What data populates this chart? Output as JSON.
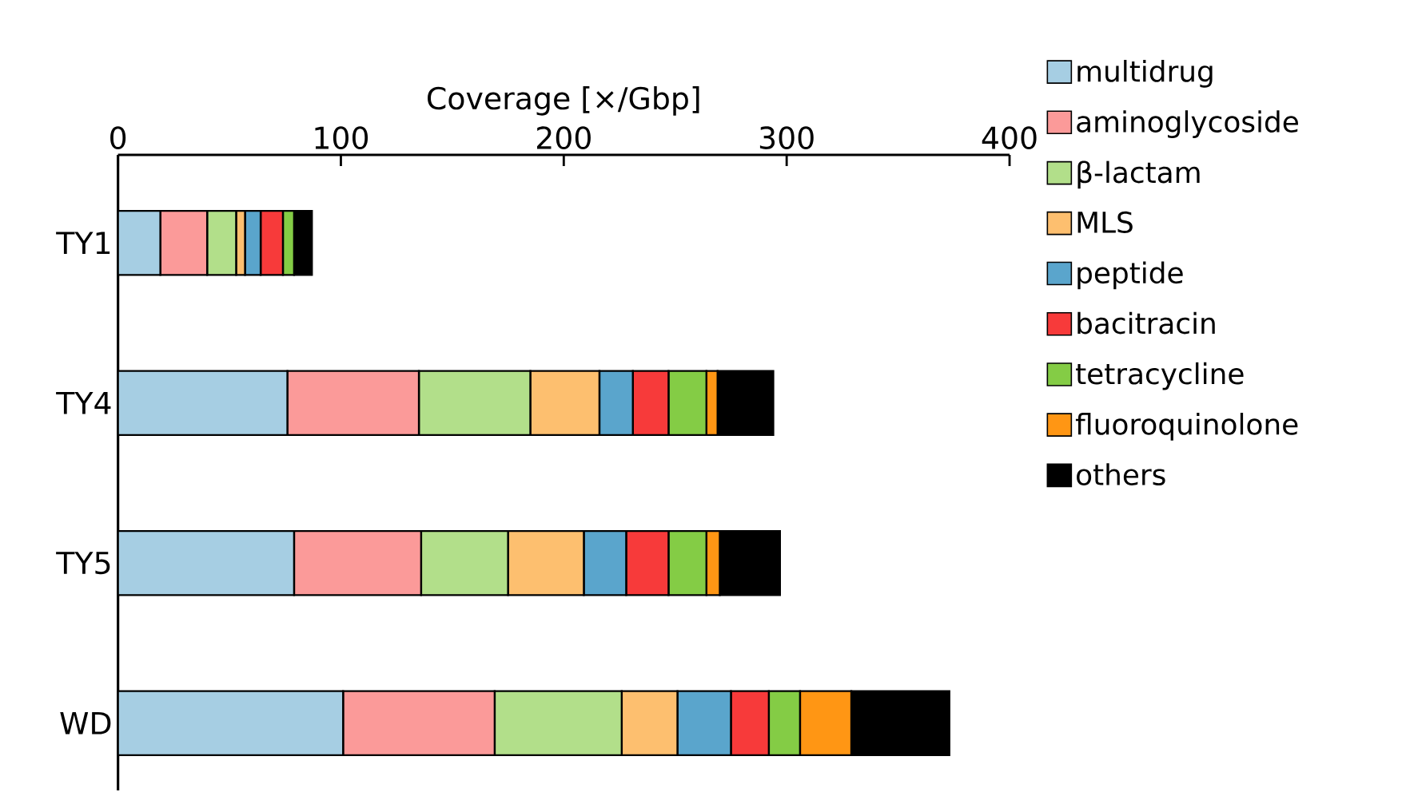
{
  "chart_data": {
    "type": "bar",
    "orientation": "horizontal",
    "stacked": true,
    "xlabel": "Coverage [×/Gbp]",
    "categories": [
      "TY1",
      "TY4",
      "TY5",
      "WD"
    ],
    "xlim": [
      0,
      400
    ],
    "xticks": [
      0,
      100,
      200,
      300,
      400
    ],
    "grid": false,
    "legend": "right",
    "series": [
      {
        "name": "multidrug",
        "color": "#a6cee3",
        "values": [
          19,
          76,
          79,
          101
        ]
      },
      {
        "name": "aminoglycoside",
        "color": "#fb9a99",
        "values": [
          21,
          59,
          57,
          68
        ]
      },
      {
        "name": "β-lactam",
        "color": "#b2df8a",
        "values": [
          13,
          50,
          39,
          57
        ]
      },
      {
        "name": "MLS",
        "color": "#fdbf6f",
        "values": [
          4,
          31,
          34,
          25
        ]
      },
      {
        "name": "peptide",
        "color": "#5aa5cc",
        "values": [
          7,
          15,
          19,
          24
        ]
      },
      {
        "name": "bacitracin",
        "color": "#f73a3a",
        "values": [
          10,
          16,
          19,
          17
        ]
      },
      {
        "name": "tetracycline",
        "color": "#84cc45",
        "values": [
          5,
          17,
          17,
          14
        ]
      },
      {
        "name": "fluoroquinolone",
        "color": "#ff9614",
        "values": [
          0,
          5,
          6,
          23
        ]
      },
      {
        "name": "others",
        "color": "#000000",
        "values": [
          8,
          25,
          27,
          44
        ]
      }
    ]
  }
}
